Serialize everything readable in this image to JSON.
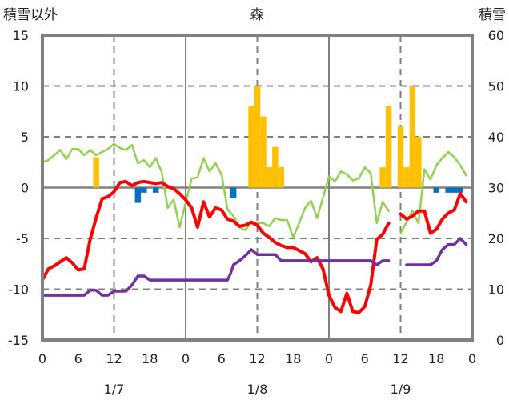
{
  "chart_data": {
    "type": "line",
    "title": "森",
    "left_axis_label": "積雪以外",
    "right_axis_label": "積雪",
    "left_ylim": [
      -15,
      15
    ],
    "right_ylim": [
      0,
      60
    ],
    "left_ticks": [
      15,
      10,
      5,
      0,
      -5,
      -10,
      -15
    ],
    "right_ticks": [
      60,
      50,
      40,
      30,
      20,
      10,
      0
    ],
    "x_range_hours": [
      0,
      72
    ],
    "x_tick_labels": [
      "0",
      "6",
      "12",
      "18",
      "0",
      "6",
      "12",
      "18",
      "0",
      "6",
      "12",
      "18",
      "0"
    ],
    "date_labels": [
      "1/7",
      "1/8",
      "1/9"
    ],
    "grid": true,
    "bars": [
      {
        "hour": 9,
        "value": 3
      },
      {
        "hour": 16,
        "value": -1.5
      },
      {
        "hour": 17,
        "value": -0.5
      },
      {
        "hour": 19,
        "value": -0.5
      },
      {
        "hour": 32,
        "value": -1
      },
      {
        "hour": 35,
        "value": 8
      },
      {
        "hour": 36,
        "value": 10
      },
      {
        "hour": 37,
        "value": 7
      },
      {
        "hour": 38,
        "value": 2
      },
      {
        "hour": 39,
        "value": 4
      },
      {
        "hour": 40,
        "value": 2
      },
      {
        "hour": 57,
        "value": 2
      },
      {
        "hour": 58,
        "value": 8
      },
      {
        "hour": 60,
        "value": 6
      },
      {
        "hour": 61,
        "value": 2
      },
      {
        "hour": 62,
        "value": 10
      },
      {
        "hour": 63,
        "value": 5
      },
      {
        "hour": 66,
        "value": -0.5
      },
      {
        "hour": 68,
        "value": -0.5
      },
      {
        "hour": 69,
        "value": -0.5
      },
      {
        "hour": 70,
        "value": -0.5
      }
    ],
    "series": [
      {
        "name": "green",
        "color": "#92D050",
        "width": 2.5,
        "points": [
          [
            0,
            2.5
          ],
          [
            1,
            2.7
          ],
          [
            2,
            3.2
          ],
          [
            3,
            3.7
          ],
          [
            4,
            2.8
          ],
          [
            5,
            3.8
          ],
          [
            6,
            3.8
          ],
          [
            7,
            3.2
          ],
          [
            8,
            3.7
          ],
          [
            9,
            3.2
          ],
          [
            10,
            3.5
          ],
          [
            11,
            3.8
          ],
          [
            12,
            4.3
          ],
          [
            13,
            3.9
          ],
          [
            14,
            3.7
          ],
          [
            15,
            4.2
          ],
          [
            16,
            2.4
          ],
          [
            17,
            2.7
          ],
          [
            18,
            2.0
          ],
          [
            19,
            2.9
          ],
          [
            20,
            1.5
          ],
          [
            21,
            -2.0
          ],
          [
            22,
            -1.2
          ],
          [
            23,
            -3.9
          ],
          [
            25,
            0.9
          ],
          [
            26,
            1.0
          ],
          [
            27,
            2.9
          ],
          [
            28,
            1.6
          ],
          [
            29,
            2.4
          ],
          [
            30,
            1.3
          ],
          [
            31,
            -2.1
          ],
          [
            32,
            -2.8
          ],
          [
            33,
            -3.9
          ],
          [
            34,
            -4.2
          ],
          [
            35,
            -3.4
          ],
          [
            36,
            -3.5
          ],
          [
            37,
            -3.5
          ],
          [
            38,
            -3.8
          ],
          [
            39,
            -3.0
          ],
          [
            40,
            -3.2
          ],
          [
            41,
            -3.2
          ],
          [
            42,
            -4.9
          ],
          [
            43,
            -3.5
          ],
          [
            44,
            -2.0
          ],
          [
            45,
            -1.3
          ],
          [
            46,
            -3.0
          ],
          [
            47,
            -1.0
          ],
          [
            48,
            1.1
          ],
          [
            49,
            0.6
          ],
          [
            50,
            1.6
          ],
          [
            51,
            1.3
          ],
          [
            52,
            0.7
          ],
          [
            53,
            0.9
          ],
          [
            54,
            2.0
          ],
          [
            55,
            1.4
          ],
          [
            56,
            -3.5
          ],
          [
            57,
            -1.4
          ],
          [
            58,
            -2.3
          ],
          null,
          [
            60,
            -4.5
          ],
          [
            62,
            -2.3
          ],
          [
            63,
            -3.5
          ],
          [
            64,
            1.8
          ],
          [
            65,
            0.8
          ],
          [
            66,
            2.2
          ],
          [
            67,
            2.9
          ],
          [
            68,
            3.5
          ],
          [
            69,
            3.0
          ],
          [
            70,
            2.2
          ],
          [
            71,
            1.2
          ]
        ]
      },
      {
        "name": "red",
        "color": "#FF0000",
        "width": 4,
        "points": [
          [
            0,
            -9.1
          ],
          [
            1,
            -8.0
          ],
          [
            2,
            -7.7
          ],
          [
            3,
            -7.3
          ],
          [
            4,
            -6.9
          ],
          [
            5,
            -7.4
          ],
          [
            6,
            -8.1
          ],
          [
            7,
            -8.0
          ],
          [
            8,
            -5.1
          ],
          [
            9,
            -3.0
          ],
          [
            10,
            -1.1
          ],
          [
            11,
            -0.9
          ],
          [
            12,
            -0.4
          ],
          [
            13,
            0.5
          ],
          [
            14,
            0.6
          ],
          [
            15,
            0.2
          ],
          [
            16,
            0.5
          ],
          [
            17,
            0.6
          ],
          [
            18,
            0.5
          ],
          [
            19,
            0.4
          ],
          [
            20,
            0.5
          ],
          [
            21,
            0.1
          ],
          [
            22,
            -0.1
          ],
          [
            23,
            -0.6
          ],
          [
            24,
            -1.2
          ],
          [
            25,
            -2.0
          ],
          [
            26,
            -3.9
          ],
          [
            27,
            -1.4
          ],
          [
            28,
            -2.9
          ],
          [
            29,
            -2.0
          ],
          [
            30,
            -2.2
          ],
          [
            31,
            -3.1
          ],
          [
            32,
            -3.3
          ],
          [
            33,
            -3.8
          ],
          [
            34,
            -3.7
          ],
          [
            35,
            -3.4
          ],
          [
            36,
            -3.7
          ],
          [
            37,
            -4.5
          ],
          [
            38,
            -4.9
          ],
          [
            39,
            -5.4
          ],
          [
            40,
            -5.7
          ],
          [
            41,
            -5.9
          ],
          [
            42,
            -5.9
          ],
          [
            43,
            -6.2
          ],
          [
            44,
            -6.5
          ],
          [
            45,
            -7.3
          ],
          [
            46,
            -6.9
          ],
          [
            47,
            -8.0
          ],
          [
            48,
            -10.6
          ],
          [
            49,
            -11.8
          ],
          [
            50,
            -12.2
          ],
          [
            51,
            -10.4
          ],
          [
            52,
            -12.2
          ],
          [
            53,
            -12.3
          ],
          [
            54,
            -11.7
          ],
          [
            55,
            -9.6
          ],
          [
            56,
            -5.1
          ],
          [
            57,
            -4.6
          ],
          [
            58,
            -3.5
          ],
          null,
          [
            60,
            -2.6
          ],
          [
            61,
            -3.1
          ],
          [
            62,
            -2.8
          ],
          [
            63,
            -2.3
          ],
          [
            64,
            -2.3
          ],
          [
            65,
            -4.5
          ],
          [
            66,
            -4.1
          ],
          [
            67,
            -3.1
          ],
          [
            68,
            -2.5
          ],
          [
            69,
            -2.2
          ],
          [
            70,
            -0.6
          ],
          [
            71,
            -1.4
          ]
        ]
      },
      {
        "name": "purple",
        "color": "#7030A0",
        "width": 3.5,
        "points": [
          [
            0,
            -10.6
          ],
          [
            7,
            -10.6
          ],
          [
            8,
            -10.1
          ],
          [
            9,
            -10.1
          ],
          [
            10,
            -10.6
          ],
          [
            11,
            -10.6
          ],
          [
            12,
            -10.2
          ],
          [
            14,
            -10.2
          ],
          [
            15,
            -9.6
          ],
          [
            16,
            -8.7
          ],
          [
            17,
            -8.7
          ],
          [
            18,
            -9.1
          ],
          [
            31,
            -9.1
          ],
          [
            31.5,
            -8.5
          ],
          [
            32,
            -7.6
          ],
          [
            33,
            -7.2
          ],
          [
            34,
            -6.7
          ],
          [
            35,
            -6.1
          ],
          [
            36,
            -6.6
          ],
          [
            39,
            -6.6
          ],
          [
            40,
            -7.2
          ],
          [
            55,
            -7.2
          ],
          [
            56,
            -7.6
          ],
          [
            57,
            -7.2
          ],
          [
            58,
            -7.2
          ],
          null,
          [
            61,
            -7.6
          ],
          [
            65,
            -7.6
          ],
          [
            66,
            -7.2
          ],
          [
            67,
            -6.1
          ],
          [
            68,
            -5.6
          ],
          [
            69,
            -5.6
          ],
          [
            70,
            -5.0
          ],
          [
            71,
            -5.6
          ]
        ]
      }
    ],
    "bar_colors": {
      "positive": "#FFC000",
      "negative": "#0070C0"
    }
  }
}
